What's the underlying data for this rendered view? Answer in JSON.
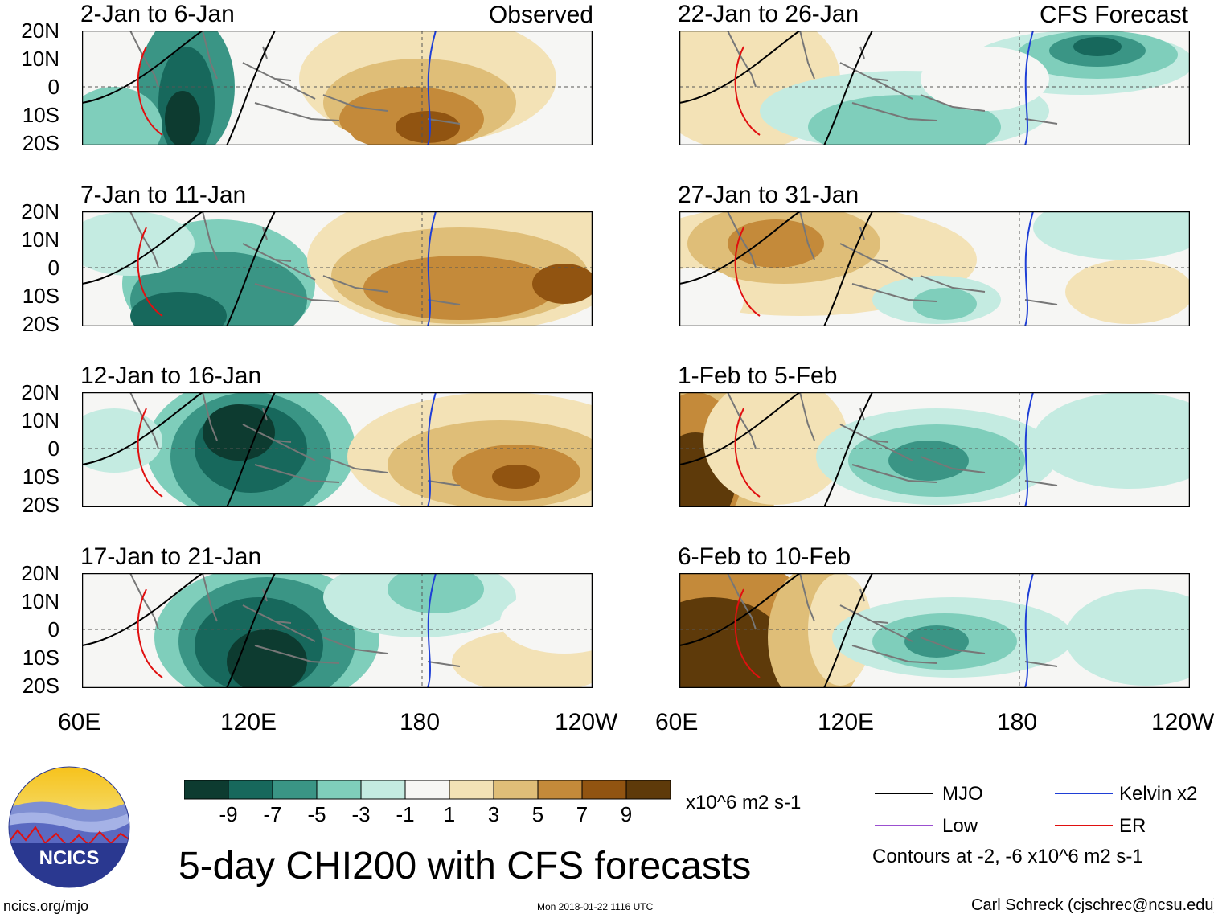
{
  "title": "5-day CHI200 with CFS forecasts",
  "colors": {
    "mjo": "#000000",
    "kelvin": "#1f3fd6",
    "low": "#9b4fd0",
    "er": "#e01010",
    "coast": "#777777",
    "scale": [
      "#0d3b30",
      "#17685c",
      "#3a9585",
      "#7fcebb",
      "#c4ebe1",
      "#f6f6f4",
      "#f3e2b6",
      "#dfbe78",
      "#c48a3a",
      "#915411",
      "#5e3a0a"
    ]
  },
  "observed_label": "Observed",
  "forecast_label": "CFS Forecast",
  "latitude_labels": [
    "20N",
    "10N",
    "0",
    "10S",
    "20S"
  ],
  "longitude_labels": [
    "60E",
    "120E",
    "180",
    "120W"
  ],
  "panels_left": [
    {
      "title": "2-Jan to 6-Jan"
    },
    {
      "title": "7-Jan to 11-Jan"
    },
    {
      "title": "12-Jan to 16-Jan"
    },
    {
      "title": "17-Jan to 21-Jan"
    }
  ],
  "panels_right": [
    {
      "title": "22-Jan to 26-Jan"
    },
    {
      "title": "27-Jan to 31-Jan"
    },
    {
      "title": "1-Feb to 5-Feb"
    },
    {
      "title": "6-Feb to 10-Feb"
    }
  ],
  "colorbar": {
    "ticks": [
      "-9",
      "-7",
      "-5",
      "-3",
      "-1",
      "1",
      "3",
      "5",
      "7",
      "9"
    ],
    "units": "x10^6 m2 s-1"
  },
  "legend": {
    "mjo": "MJO",
    "kelvin": "Kelvin x2",
    "low": "Low",
    "er": "ER",
    "contours": "Contours at -2, -6 x10^6 m2 s-1"
  },
  "logo": {
    "text": "NCICS"
  },
  "footer": {
    "site": "ncics.org/mjo",
    "timestamp": "Mon 2018-01-22 1116 UTC",
    "author": "Carl Schreck (cjschrec@ncsu.edu)"
  }
}
